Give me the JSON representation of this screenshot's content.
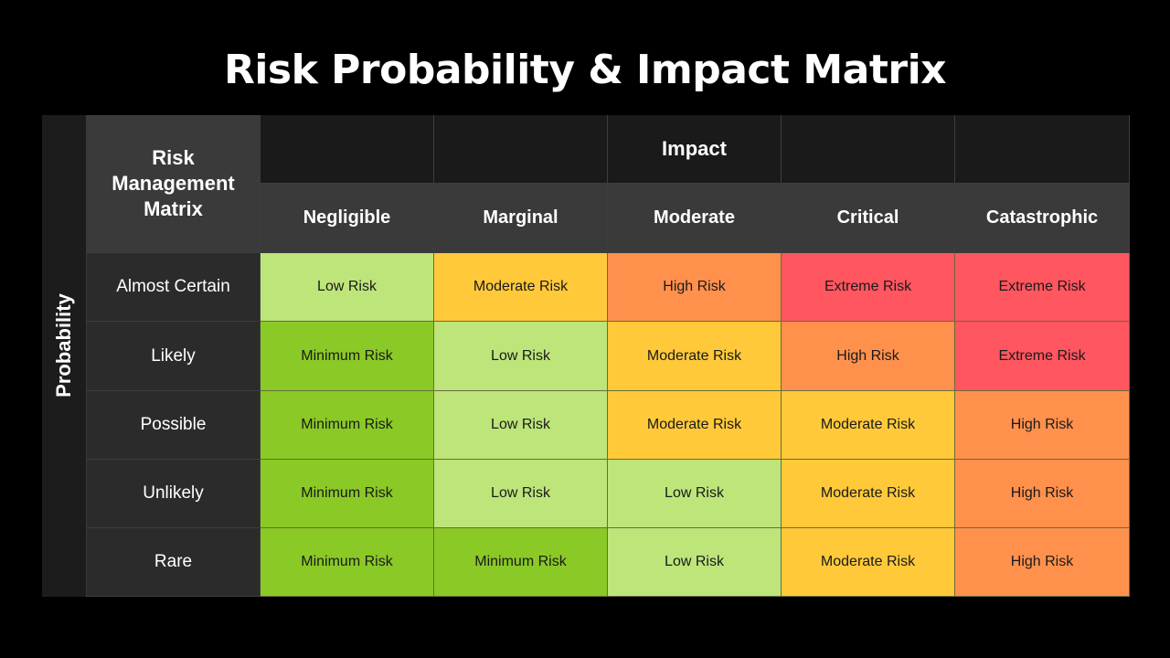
{
  "title": "Risk Probability & Impact Matrix",
  "axis": {
    "probability_label": "Probability",
    "impact_label": "Impact"
  },
  "corner_label": "Risk Management Matrix",
  "impact_levels": [
    "Negligible",
    "Marginal",
    "Moderate",
    "Critical",
    "Catastrophic"
  ],
  "probability_levels": [
    "Almost Certain",
    "Likely",
    "Possible",
    "Unlikely",
    "Rare"
  ],
  "matrix": [
    [
      "Low Risk",
      "Moderate Risk",
      "High Risk",
      "Extreme Risk",
      "Extreme Risk"
    ],
    [
      "Minimum Risk",
      "Low Risk",
      "Moderate Risk",
      "High Risk",
      "Extreme Risk"
    ],
    [
      "Minimum Risk",
      "Low Risk",
      "Moderate Risk",
      "Moderate Risk",
      "High Risk"
    ],
    [
      "Minimum Risk",
      "Low Risk",
      "Low Risk",
      "Moderate Risk",
      "High Risk"
    ],
    [
      "Minimum Risk",
      "Minimum Risk",
      "Low Risk",
      "Moderate Risk",
      "High Risk"
    ]
  ],
  "risk_colors": {
    "Minimum Risk": "#8ac926",
    "Low Risk": "#bde57a",
    "Moderate Risk": "#ffc93a",
    "High Risk": "#ff914d",
    "Extreme Risk": "#ff5660"
  },
  "colors": {
    "background": "#000000",
    "header_dark": "#1a1a1a",
    "header_mid": "#3a3a3a",
    "row_label": "#2b2b2b"
  }
}
